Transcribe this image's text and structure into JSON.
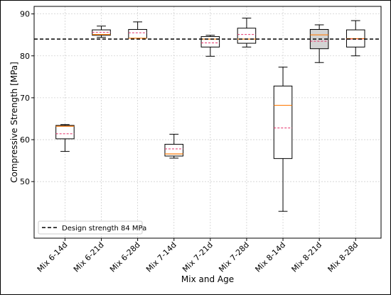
{
  "chart_data": {
    "type": "box",
    "title": "",
    "xlabel": "Mix and Age",
    "ylabel": "Compressive Strength [MPa]",
    "ylim": [
      36.5,
      91.8
    ],
    "yticks": [
      50,
      60,
      70,
      80,
      90
    ],
    "grid": true,
    "legend_position": "bottom-left",
    "reference_line": {
      "label": "Design strength 84 MPa",
      "value": 84,
      "style": "dashed",
      "color": "#000000"
    },
    "categories": [
      "Mix 6-14d",
      "Mix 6-21d",
      "Mix 6-28d",
      "Mix 7-14d",
      "Mix 7-21d",
      "Mix 7-28d",
      "Mix 8-14d",
      "Mix 8-21d",
      "Mix 8-28d"
    ],
    "boxes": [
      {
        "category": "Mix 6-14d",
        "whisker_low": 57.2,
        "q1": 60.2,
        "median": 63.2,
        "q3": 63.4,
        "whisker_high": 63.6,
        "mean": 61.4
      },
      {
        "category": "Mix 6-21d",
        "whisker_low": 84.4,
        "q1": 84.9,
        "median": 85.1,
        "q3": 86.2,
        "whisker_high": 87.1,
        "mean": 85.6
      },
      {
        "category": "Mix 6-28d",
        "whisker_low": 84.2,
        "q1": 84.2,
        "median": 84.2,
        "q3": 86.3,
        "whisker_high": 88.1,
        "mean": 85.5
      },
      {
        "category": "Mix 7-14d",
        "whisker_low": 55.6,
        "q1": 56.1,
        "median": 56.6,
        "q3": 58.9,
        "whisker_high": 61.3,
        "mean": 57.8
      },
      {
        "category": "Mix 7-21d",
        "whisker_low": 79.9,
        "q1": 82.1,
        "median": 84.0,
        "q3": 84.6,
        "whisker_high": 84.9,
        "mean": 83.1
      },
      {
        "category": "Mix 7-28d",
        "whisker_low": 82.1,
        "q1": 83.0,
        "median": 84.0,
        "q3": 86.6,
        "whisker_high": 89.0,
        "mean": 85.1
      },
      {
        "category": "Mix 8-14d",
        "whisker_low": 42.9,
        "q1": 55.5,
        "median": 68.2,
        "q3": 72.8,
        "whisker_high": 77.3,
        "mean": 62.8
      },
      {
        "category": "Mix 8-21d",
        "whisker_low": 78.4,
        "q1": 81.7,
        "median": 85.0,
        "q3": 86.3,
        "whisker_high": 87.4,
        "mean": 83.5
      },
      {
        "category": "Mix 8-28d",
        "whisker_low": 80.0,
        "q1": 82.1,
        "median": 84.1,
        "q3": 86.2,
        "whisker_high": 88.4,
        "mean": 84.0
      }
    ],
    "colors": {
      "median": "#ff7f0e",
      "mean": "#e6336b",
      "box_fill": "#ffffff",
      "box_fill_highlight": "#d3d3d3"
    },
    "highlighted_boxes": [
      "Mix 8-21d"
    ]
  }
}
